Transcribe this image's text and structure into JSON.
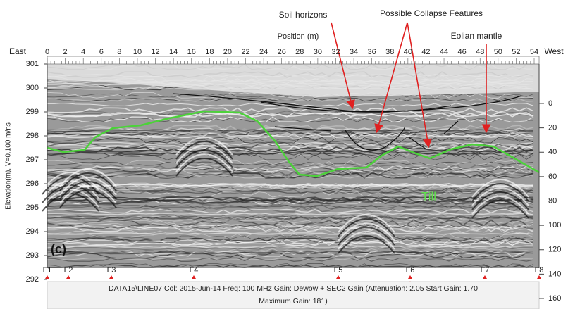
{
  "top_axis": {
    "title": "Position (m)",
    "left_label": "East",
    "right_label": "West",
    "ticks": [
      "0",
      "2",
      "4",
      "6",
      "8",
      "10",
      "12",
      "14",
      "16",
      "18",
      "20",
      "22",
      "24",
      "26",
      "28",
      "30",
      "32",
      "34",
      "36",
      "38",
      "40",
      "42",
      "44",
      "46",
      "48",
      "50",
      "52",
      "54"
    ]
  },
  "left_axis": {
    "title": "Elevation(m), V=0.100 m/ns",
    "ticks": [
      "301",
      "300",
      "299",
      "298",
      "297",
      "296",
      "295",
      "294",
      "293",
      "292"
    ]
  },
  "right_axis": {
    "ticks": [
      "0",
      "20",
      "40",
      "60",
      "80",
      "100",
      "120",
      "140",
      "160"
    ]
  },
  "annotations": [
    "Soil horizons",
    "Possible Collapse Features",
    "Eolian mantle"
  ],
  "panel_label": "(c)",
  "till_label": "Till",
  "fiducials": [
    "F1",
    "F2",
    "F3",
    "F4",
    "F5",
    "F6",
    "F7",
    "F8"
  ],
  "footer": [
    "DATA15\\LINE07  Col: 2015-Jun-14  Freq: 100 MHz  Gain: Dewow + SEC2 Gain (Attenuation: 2.05  Start Gain: 1.70",
    "Maximum Gain: 181)"
  ]
}
